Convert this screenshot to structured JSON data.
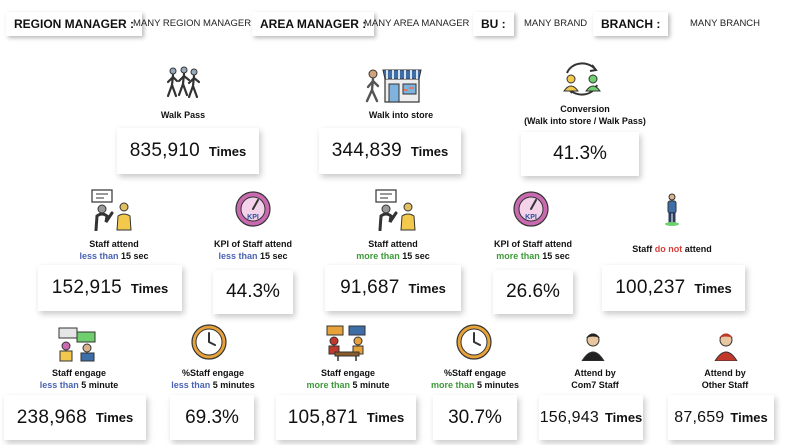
{
  "filters": {
    "region_label": "REGION MANAGER :",
    "region_value": "MANY REGION MANAGER",
    "area_label": "AREA MANAGER :",
    "area_value": "MANY AREA MANAGER",
    "bu_label": "BU :",
    "bu_value": "MANY BRAND",
    "branch_label": "BRANCH :",
    "branch_value": "MANY BRANCH"
  },
  "unit": "Times",
  "row1": {
    "walk_pass": {
      "title": "Walk Pass",
      "value": "835,910"
    },
    "walk_into_store": {
      "title": "Walk into store",
      "value": "344,839"
    },
    "conversion": {
      "title": "Conversion",
      "subtitle": "(Walk into store / Walk Pass)",
      "value": "41.3%"
    }
  },
  "row2": {
    "attend_less": {
      "title": "Staff attend",
      "q": "less than",
      "tail": "15 sec",
      "value": "152,915"
    },
    "kpi_less": {
      "title": "KPI of Staff attend",
      "q": "less than",
      "tail": "15 sec",
      "value": "44.3%"
    },
    "attend_more": {
      "title": "Staff attend",
      "q": "more than",
      "tail": "15 sec",
      "value": "91,687"
    },
    "kpi_more": {
      "title": "KPI of Staff attend",
      "q": "more than",
      "tail": "15 sec",
      "value": "26.6%"
    },
    "not_attend": {
      "pre": "Staff",
      "q": "do not",
      "post": "attend",
      "value": "100,237"
    }
  },
  "row3": {
    "engage_less": {
      "title": "Staff engage",
      "q": "less than",
      "tail": "5 minute",
      "value": "238,968"
    },
    "pct_engage_less": {
      "title": "%Staff engage",
      "q": "less than",
      "tail": "5 minutes",
      "value": "69.3%"
    },
    "engage_more": {
      "title": "Staff engage",
      "q": "more than",
      "tail": "5 minute",
      "value": "105,871"
    },
    "pct_engage_more": {
      "title": "%Staff engage",
      "q": "more than",
      "tail": "5 minutes",
      "value": "30.7%"
    },
    "com7": {
      "title": "Attend by",
      "sub": "Com7 Staff",
      "value": "156,943"
    },
    "other": {
      "title": "Attend by",
      "sub": "Other Staff",
      "value": "87,659"
    }
  },
  "kpi_icon_text": "KPI",
  "colors": {
    "less": "#4a63b3",
    "more": "#3e9a3a",
    "not": "#d43f3a"
  }
}
